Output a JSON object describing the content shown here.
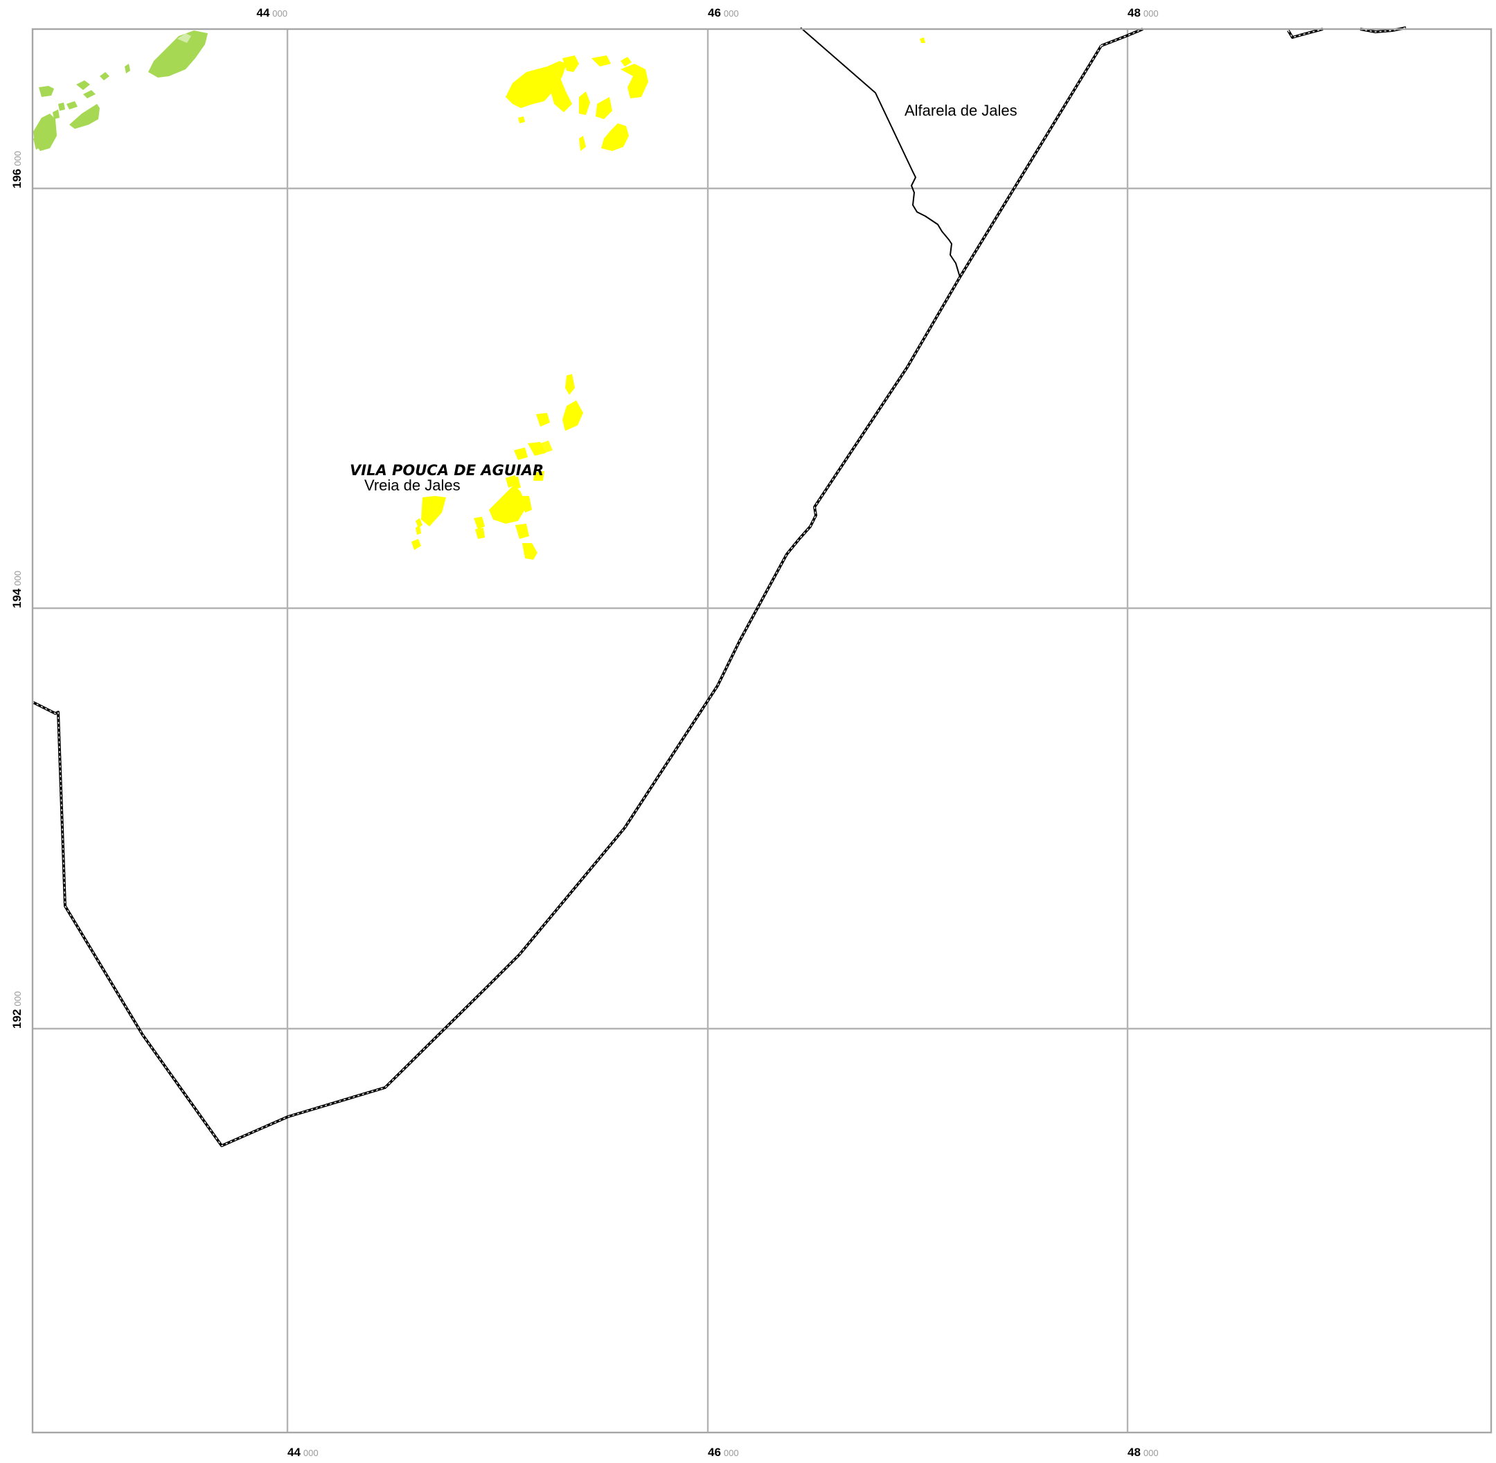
{
  "map": {
    "colors": {
      "background": "#ffffff",
      "grid": "#b3b3b3",
      "yellow_parcels": "#ffff00",
      "green_parcels": "#a6d854",
      "boundary": "#000000"
    },
    "grid_labels": {
      "x": [
        {
          "major": "44",
          "minor": "000"
        },
        {
          "major": "46",
          "minor": "000"
        },
        {
          "major": "48",
          "minor": "000"
        }
      ],
      "y": [
        {
          "major": "196",
          "minor": "000"
        },
        {
          "major": "194",
          "minor": "000"
        },
        {
          "major": "192",
          "minor": "000"
        }
      ]
    },
    "labels": {
      "municipality": "VILA POUCA DE AGUIAR",
      "place_vreia": "Vreia de Jales",
      "place_alfarela": "Alfarela de Jales"
    }
  }
}
